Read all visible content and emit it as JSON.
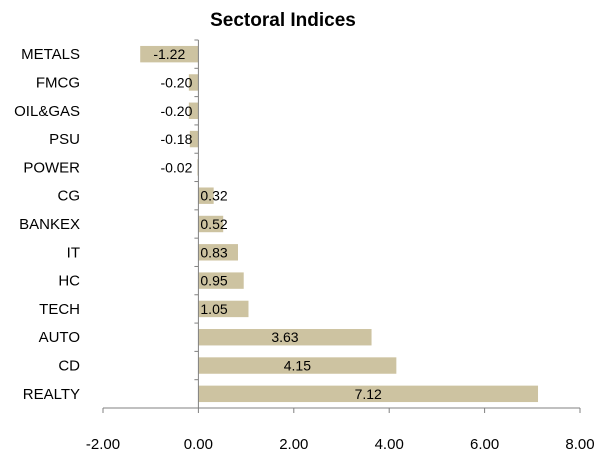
{
  "chart_data": {
    "type": "bar",
    "orientation": "horizontal",
    "title": "Sectoral Indices",
    "xlabel": "",
    "ylabel": "",
    "categories": [
      "METALS",
      "FMCG",
      "OIL&GAS",
      "PSU",
      "POWER",
      "CG",
      "BANKEX",
      "IT",
      "HC",
      "TECH",
      "AUTO",
      "CD",
      "REALTY"
    ],
    "values": [
      -1.22,
      -0.2,
      -0.2,
      -0.18,
      -0.02,
      0.32,
      0.52,
      0.83,
      0.95,
      1.05,
      3.63,
      4.15,
      7.12
    ],
    "value_labels": [
      "-1.22",
      "-0.20",
      "-0.20",
      "-0.18",
      "-0.02",
      "0.32",
      "0.52",
      "0.83",
      "0.95",
      "1.05",
      "3.63",
      "4.15",
      "7.12"
    ],
    "xlim": [
      -2,
      8
    ],
    "x_ticks": [
      -2,
      0,
      2,
      4,
      6,
      8
    ],
    "x_tick_labels": [
      "-2.00",
      "0.00",
      "2.00",
      "4.00",
      "6.00",
      "8.00"
    ],
    "grid": false,
    "legend": "none",
    "bar_color": "#cdc3a1"
  }
}
